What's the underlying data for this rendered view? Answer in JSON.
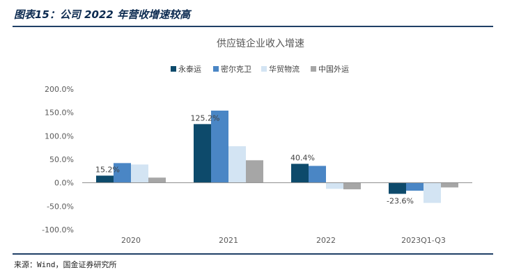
{
  "figure": {
    "title": "图表15：公司 2022 年营收增速较高",
    "source": "来源：Wind，国金证券研究所"
  },
  "chart_data": {
    "type": "bar",
    "title": "供应链企业收入增速",
    "categories": [
      "2020",
      "2021",
      "2022",
      "2023Q1-Q3"
    ],
    "series": [
      {
        "name": "永泰运",
        "color": "#0d4a6b",
        "values": [
          15.2,
          125.2,
          40.4,
          -23.6
        ]
      },
      {
        "name": "密尔克卫",
        "color": "#4a86c5",
        "values": [
          42,
          154,
          36,
          -17
        ]
      },
      {
        "name": "华贸物流",
        "color": "#d3e4f3",
        "values": [
          39,
          78,
          -13,
          -43
        ]
      },
      {
        "name": "中国外运",
        "color": "#a6a6a6",
        "values": [
          11,
          48,
          -14,
          -10
        ]
      }
    ],
    "data_labels": [
      {
        "series": 0,
        "index": 0,
        "text": "15.2%"
      },
      {
        "series": 0,
        "index": 1,
        "text": "125.2%"
      },
      {
        "series": 0,
        "index": 2,
        "text": "40.4%"
      },
      {
        "series": 0,
        "index": 3,
        "text": "-23.6%"
      }
    ],
    "ylim": [
      -100,
      200
    ],
    "yticks": [
      -100,
      -50,
      0,
      50,
      100,
      150,
      200
    ],
    "ytick_labels": [
      "-100.0%",
      "-50.0%",
      "0.0%",
      "50.0%",
      "100.0%",
      "150.0%",
      "200.0%"
    ],
    "legend_position": "top",
    "grid": false
  }
}
